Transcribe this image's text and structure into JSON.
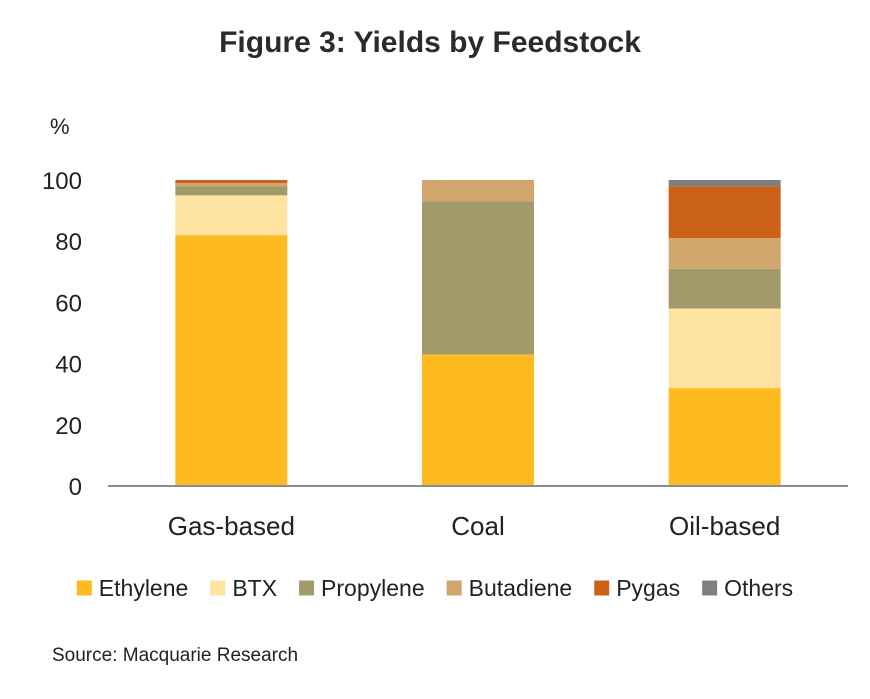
{
  "chart_data": {
    "type": "bar",
    "stacked": true,
    "title": "Figure 3: Yields by Feedstock",
    "ylabel": "%",
    "xlabel": "",
    "ylim": [
      0,
      100
    ],
    "yticks": [
      0,
      20,
      40,
      60,
      80,
      100
    ],
    "categories": [
      "Gas-based",
      "Coal",
      "Oil-based"
    ],
    "series": [
      {
        "name": "Ethylene",
        "color": "#FDBA21",
        "values": [
          82,
          43,
          32
        ]
      },
      {
        "name": "BTX",
        "color": "#FEE3A1",
        "values": [
          13,
          0,
          26
        ]
      },
      {
        "name": "Propylene",
        "color": "#A29A6B",
        "values": [
          3,
          50,
          13
        ]
      },
      {
        "name": "Butadiene",
        "color": "#D0A66D",
        "values": [
          1,
          7,
          10
        ]
      },
      {
        "name": "Pygas",
        "color": "#CC611A",
        "values": [
          1,
          0,
          17
        ]
      },
      {
        "name": "Others",
        "color": "#7F7F7F",
        "values": [
          0,
          0,
          2
        ]
      }
    ],
    "grid": false,
    "legend_position": "bottom"
  },
  "source": "Source: Macquarie Research"
}
